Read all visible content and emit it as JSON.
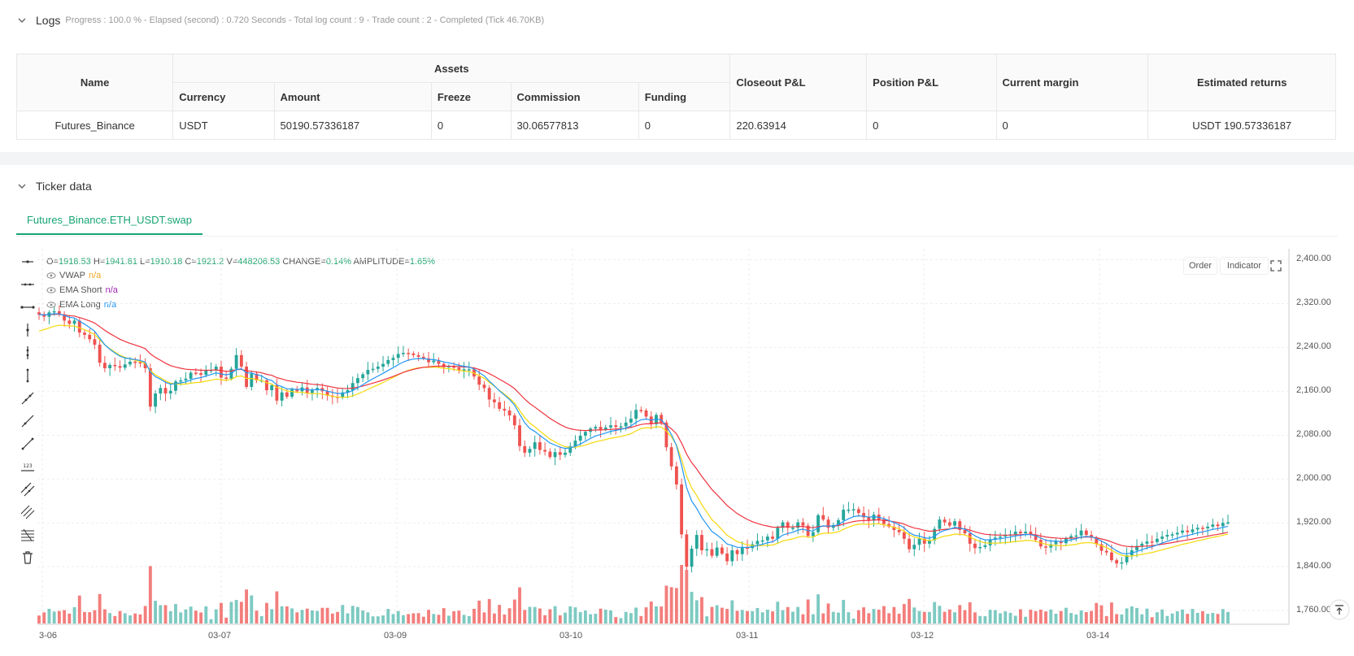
{
  "logs": {
    "title": "Logs",
    "subtitle": "Progress : 100.0 % - Elapsed (second) : 0.720  Seconds - Total log count : 9 - Trade count : 2 - Completed (Tick 46.70KB)"
  },
  "assets_table": {
    "group_header": "Assets",
    "headers": {
      "name": "Name",
      "currency": "Currency",
      "amount": "Amount",
      "freeze": "Freeze",
      "commission": "Commission",
      "funding": "Funding",
      "closeout_pl": "Closeout P&L",
      "position_pl": "Position P&L",
      "current_margin": "Current margin",
      "estimated_returns": "Estimated returns"
    },
    "row": {
      "name": "Futures_Binance",
      "currency": "USDT",
      "amount": "50190.57336187",
      "freeze": "0",
      "commission": "30.06577813",
      "funding": "0",
      "closeout_pl": "220.63914",
      "position_pl": "0",
      "current_margin": "0",
      "estimated_returns": "USDT 190.57336187"
    }
  },
  "ticker": {
    "title": "Ticker data",
    "tab_label": "Futures_Binance.ETH_USDT.swap",
    "order_button": "Order",
    "indicator_button": "Indicator",
    "ohlc": {
      "o_label": "O=",
      "o": "1918.53",
      "h_label": "H=",
      "h": "1941.81",
      "l_label": "L=",
      "l": "1910.18",
      "c_label": "C=",
      "c": "1921.2",
      "v_label": "V=",
      "v": "448206.53",
      "change_label": "CHANGE=",
      "change": "0.14%",
      "amp_label": "AMPLITUDE=",
      "amp": "1.65%"
    },
    "legend": [
      {
        "name": "VWAP",
        "value": "n/a",
        "color": "#f5a623"
      },
      {
        "name": "EMA Short",
        "value": "n/a",
        "color": "#9c27b0"
      },
      {
        "name": "EMA Long",
        "value": "n/a",
        "color": "#2196f3"
      }
    ],
    "colors": {
      "up": "#26a69a",
      "down": "#ef5350",
      "vwap": "#f5d90a",
      "ema_short": "#2196f3",
      "ema_long": "#ef3340",
      "accent": "#17a673"
    }
  },
  "chart_data": {
    "type": "candlestick",
    "y_ticks": [
      "2,400.00",
      "2,320.00",
      "2,240.00",
      "2,160.00",
      "2,080.00",
      "2,000.00",
      "1,920.00",
      "1,840.00",
      "1,760.00"
    ],
    "y_tick_values": [
      2400,
      2320,
      2240,
      2160,
      2080,
      2000,
      1920,
      1840,
      1760
    ],
    "x_ticks": [
      "3-06",
      "03-07",
      "03-09",
      "03-10",
      "03-11",
      "03-12",
      "03-14"
    ],
    "close": [
      2300,
      2296,
      2304,
      2306,
      2300,
      2289,
      2283,
      2289,
      2267,
      2263,
      2255,
      2245,
      2212,
      2202,
      2208,
      2206,
      2203,
      2209,
      2214,
      2213,
      2211,
      2202,
      2132,
      2156,
      2166,
      2156,
      2161,
      2178,
      2180,
      2183,
      2194,
      2193,
      2190,
      2199,
      2199,
      2205,
      2185,
      2183,
      2201,
      2226,
      2205,
      2168,
      2192,
      2180,
      2180,
      2162,
      2171,
      2143,
      2158,
      2150,
      2163,
      2160,
      2167,
      2157,
      2162,
      2166,
      2160,
      2152,
      2150,
      2149,
      2158,
      2162,
      2175,
      2184,
      2191,
      2199,
      2201,
      2205,
      2210,
      2217,
      2221,
      2228,
      2230,
      2229,
      2226,
      2223,
      2220,
      2213,
      2216,
      2210,
      2204,
      2206,
      2203,
      2198,
      2200,
      2200,
      2187,
      2172,
      2166,
      2145,
      2140,
      2128,
      2125,
      2116,
      2098,
      2060,
      2048,
      2055,
      2067,
      2053,
      2050,
      2040,
      2049,
      2044,
      2048,
      2060,
      2070,
      2079,
      2086,
      2092,
      2095,
      2090,
      2094,
      2098,
      2095,
      2096,
      2103,
      2110,
      2126,
      2125,
      2114,
      2100,
      2117,
      2103,
      2058,
      2023,
      1990,
      1899,
      1840,
      1873,
      1898,
      1870,
      1872,
      1860,
      1875,
      1864,
      1850,
      1870,
      1863,
      1875,
      1874,
      1881,
      1887,
      1888,
      1895,
      1891,
      1911,
      1921,
      1911,
      1911,
      1921,
      1915,
      1896,
      1903,
      1934,
      1926,
      1911,
      1916,
      1925,
      1944,
      1944,
      1945,
      1938,
      1930,
      1924,
      1935,
      1926,
      1918,
      1913,
      1907,
      1903,
      1891,
      1872,
      1880,
      1891,
      1882,
      1888,
      1909,
      1926,
      1921,
      1915,
      1923,
      1907,
      1901,
      1882,
      1874,
      1876,
      1879,
      1890,
      1893,
      1895,
      1898,
      1899,
      1904,
      1901,
      1904,
      1898,
      1889,
      1877,
      1875,
      1881,
      1887,
      1883,
      1892,
      1896,
      1897,
      1906,
      1898,
      1893,
      1881,
      1869,
      1866,
      1852,
      1846,
      1848,
      1861,
      1870,
      1878,
      1882,
      1886,
      1885,
      1891,
      1895,
      1898,
      1899,
      1902,
      1906,
      1903,
      1908,
      1911,
      1910,
      1913,
      1917,
      1914,
      1920,
      1921
    ],
    "volume_scale": "relative"
  }
}
